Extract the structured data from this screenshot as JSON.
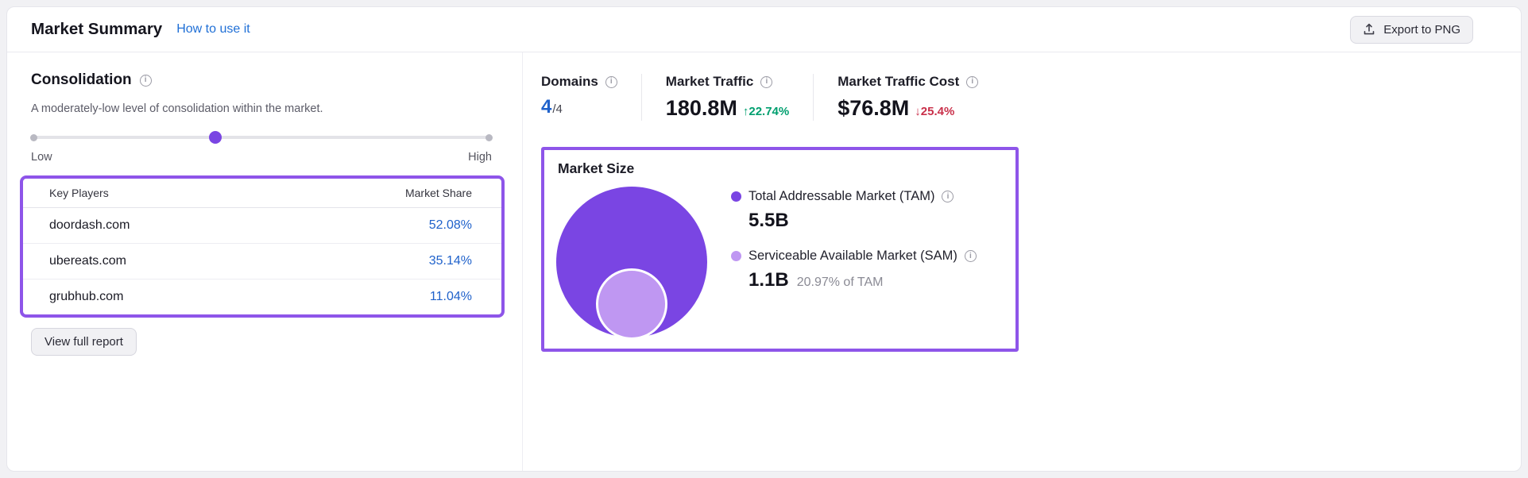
{
  "header": {
    "title": "Market Summary",
    "help_link": "How to use it",
    "export_button_label": "Export to PNG"
  },
  "consolidation": {
    "title": "Consolidation",
    "description": "A moderately-low level of consolidation within the market.",
    "slider": {
      "low_label": "Low",
      "high_label": "High",
      "position_percent": 40
    },
    "table": {
      "col_players": "Key Players",
      "col_share": "Market Share",
      "rows": [
        {
          "domain": "doordash.com",
          "share": "52.08%"
        },
        {
          "domain": "ubereats.com",
          "share": "35.14%"
        },
        {
          "domain": "grubhub.com",
          "share": "11.04%"
        }
      ]
    },
    "view_report_label": "View full report"
  },
  "stats": {
    "domains": {
      "label": "Domains",
      "value": "4",
      "total": "/4"
    },
    "traffic": {
      "label": "Market Traffic",
      "value": "180.8M",
      "change_arrow": "↑",
      "change": "22.74%",
      "trend": "up"
    },
    "cost": {
      "label": "Market Traffic Cost",
      "value": "$76.8M",
      "change_arrow": "↓",
      "change": "25.4%",
      "trend": "down"
    }
  },
  "market_size": {
    "title": "Market Size",
    "tam": {
      "label": "Total Addressable Market (TAM)",
      "value": "5.5B"
    },
    "sam": {
      "label": "Serviceable Available Market (SAM)",
      "value": "1.1B",
      "note": "20.97% of TAM"
    }
  },
  "colors": {
    "highlight_purple": "#8e55e9",
    "tam_bubble": "#7a45e3",
    "sam_bubble": "#bf97f2",
    "link_blue": "#1f6fd6",
    "value_blue": "#2062cb",
    "positive_green": "#009f6f",
    "negative_red": "#c9304a"
  }
}
